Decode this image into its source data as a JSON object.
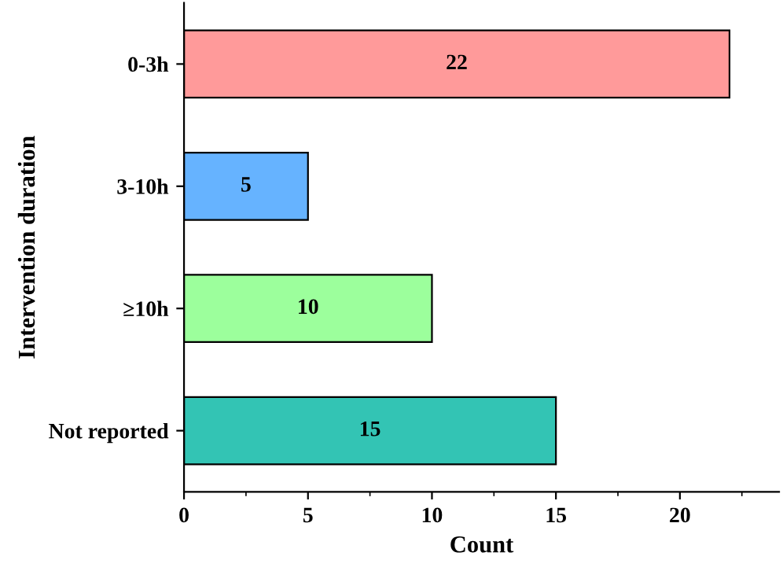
{
  "chart_data": {
    "type": "bar",
    "orientation": "horizontal",
    "xlabel": "Count",
    "ylabel": "Intervention duration",
    "categories": [
      "0-3h",
      "3-10h",
      "≥10h",
      "Not reported"
    ],
    "values": [
      22,
      5,
      10,
      15
    ],
    "colors": [
      "#ff9a9a",
      "#66b3ff",
      "#9cff9c",
      "#33c4b4"
    ],
    "xlim": [
      0,
      24
    ],
    "xticks": [
      0,
      5,
      10,
      15,
      20
    ],
    "data_labels": true,
    "grid": false,
    "legend": false
  }
}
